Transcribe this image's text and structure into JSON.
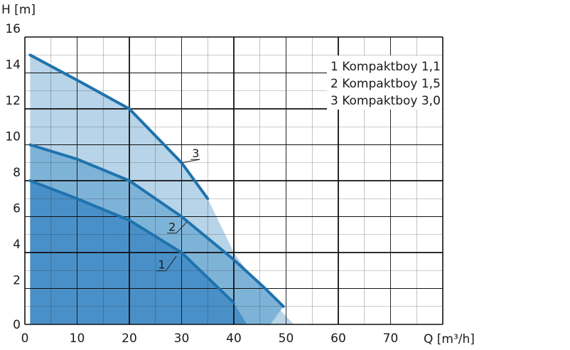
{
  "chart_data": {
    "type": "area",
    "xlabel": "Q [m³/h]",
    "ylabel": "H [m]",
    "xlim": [
      0,
      80
    ],
    "ylim": [
      0,
      16
    ],
    "x_ticks": [
      0,
      10,
      20,
      30,
      40,
      50,
      60,
      70
    ],
    "y_ticks": [
      0,
      2,
      4,
      6,
      8,
      10,
      12,
      14,
      16
    ],
    "grid": true,
    "legend_position": "top-right",
    "legend": [
      "1 Kompaktboy 1,1",
      "2 Kompaktboy 1,5",
      "3 Kompaktboy 3,0"
    ],
    "series": [
      {
        "name": "3 Kompaktboy 3,0",
        "label": "3",
        "line_x": [
          1,
          10,
          20,
          30,
          35
        ],
        "line_y": [
          15,
          13.6,
          12,
          9,
          7
        ],
        "area_tail_x": [
          40,
          45,
          51.5
        ],
        "area_tail_y": [
          4,
          2,
          0
        ],
        "fill_color": "#b8d4e8",
        "line_color": "#1f73ad"
      },
      {
        "name": "2 Kompaktboy 1,5",
        "label": "2",
        "line_x": [
          1,
          10,
          20,
          30,
          40,
          46,
          49.5
        ],
        "line_y": [
          10,
          9.2,
          8,
          6,
          3.6,
          2,
          1
        ],
        "area_tail_x": [
          49.5,
          47
        ],
        "area_tail_y": [
          1,
          0
        ],
        "fill_color": "#7eb3d8",
        "line_color": "#1f73ad"
      },
      {
        "name": "1 Kompaktboy 1,1",
        "label": "1",
        "line_x": [
          1,
          10,
          20,
          30,
          40
        ],
        "line_y": [
          8,
          7,
          5.8,
          4,
          1.2
        ],
        "area_tail_x": [
          40,
          42.5
        ],
        "area_tail_y": [
          1.2,
          0
        ],
        "fill_color": "#4a90c8",
        "line_color": "#1f73ad"
      }
    ],
    "label_pointers": [
      {
        "label": "3",
        "text_x": 32,
        "text_y": 9.3,
        "target_x": 30,
        "target_y": 9
      },
      {
        "label": "2",
        "text_x": 27.5,
        "text_y": 5.2,
        "target_x": 31,
        "target_y": 5.7
      },
      {
        "label": "1",
        "text_x": 25.5,
        "text_y": 3.1,
        "target_x": 29,
        "target_y": 3.8
      }
    ]
  }
}
